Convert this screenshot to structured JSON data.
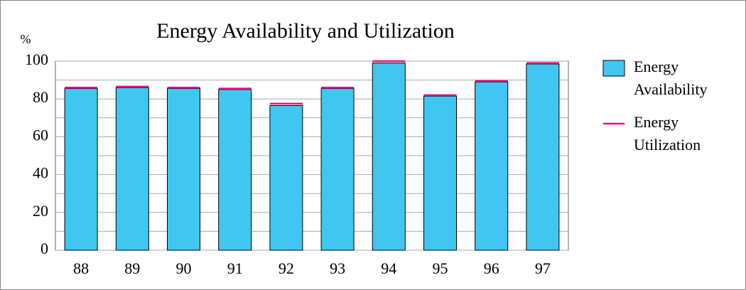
{
  "chart_data": {
    "type": "bar",
    "title": "Energy Availability and Utilization",
    "y_unit": "%",
    "categories": [
      "88",
      "89",
      "90",
      "91",
      "92",
      "93",
      "94",
      "95",
      "96",
      "97"
    ],
    "series": [
      {
        "name": "Energy Availability",
        "color": "#41c6f2",
        "mark": "bar",
        "values": [
          85.5,
          86,
          85.5,
          85,
          76.5,
          85.5,
          99,
          81.5,
          89,
          98.5
        ]
      },
      {
        "name": "Energy Utilization",
        "color": "#e6127e",
        "mark": "level",
        "values": [
          86,
          86.5,
          86,
          85.5,
          77.5,
          86,
          100,
          82,
          89.5,
          99
        ]
      }
    ],
    "ylim": [
      0,
      100
    ],
    "yticks": [
      0,
      20,
      40,
      60,
      80,
      100
    ],
    "minor_yticks": [
      10,
      30,
      50,
      70,
      90
    ],
    "grid": true,
    "legend": "right"
  }
}
